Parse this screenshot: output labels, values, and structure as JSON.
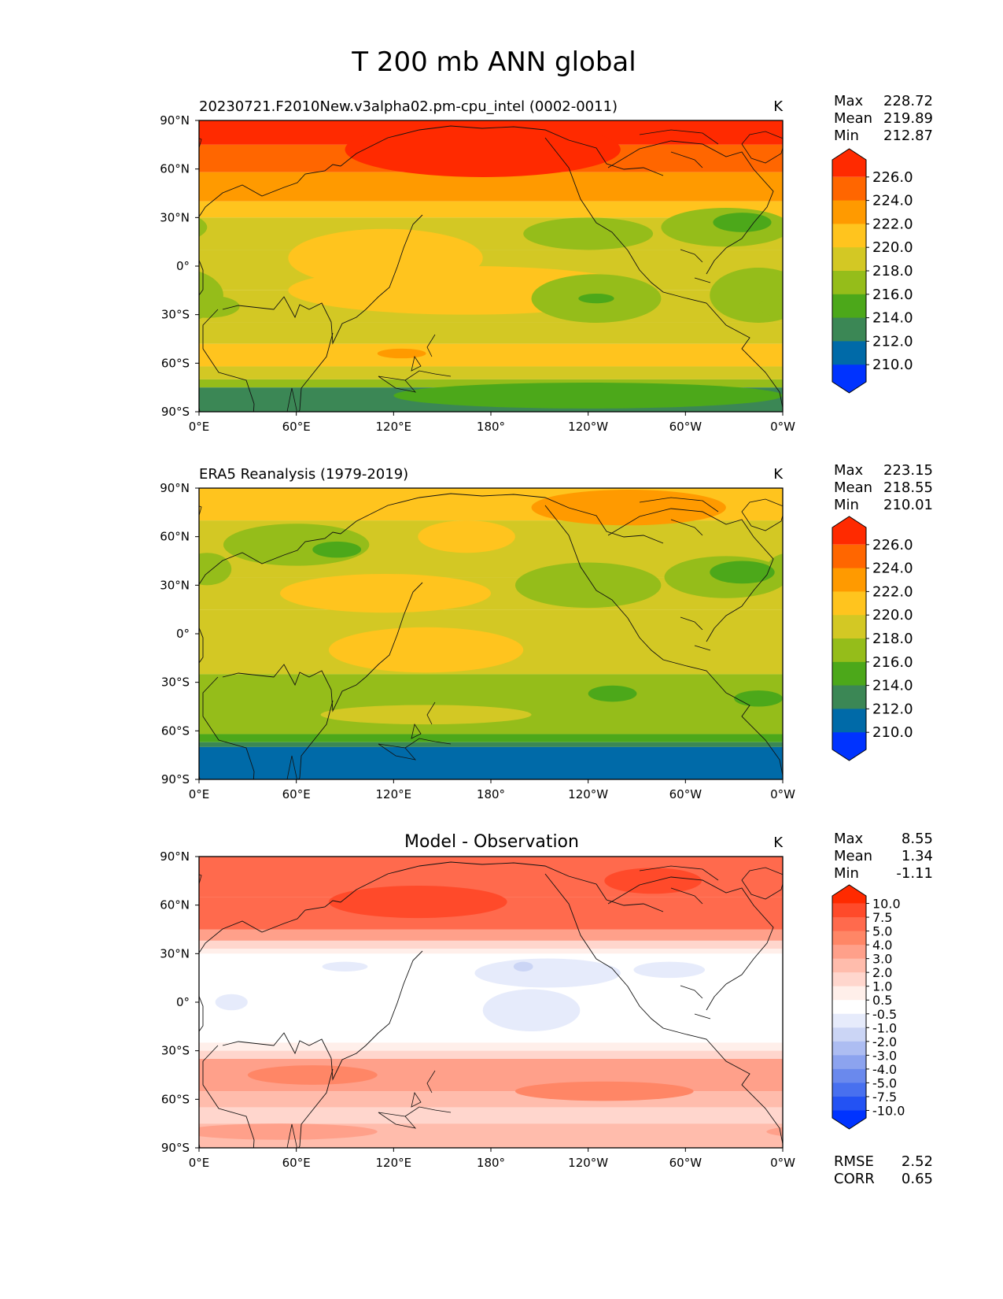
{
  "figure": {
    "title": "T 200 mb ANN global"
  },
  "chart_data": [
    {
      "type": "heatmap",
      "name": "model",
      "title": "20230721.F2010New.v3alpha02.pm-cpu_intel (0002-0011)",
      "units": "K",
      "stats": [
        {
          "label": "Max",
          "value": "228.72"
        },
        {
          "label": "Mean",
          "value": "219.89"
        },
        {
          "label": "Min",
          "value": "212.87"
        }
      ],
      "x_ticks": [
        "0°E",
        "60°E",
        "120°E",
        "180°",
        "120°W",
        "60°W",
        "0°W"
      ],
      "y_ticks": [
        "90°N",
        "60°N",
        "30°N",
        "0°",
        "30°S",
        "60°S",
        "90°S"
      ],
      "xlim": [
        0,
        360
      ],
      "ylim": [
        -90,
        90
      ],
      "colorbar": {
        "levels": [
          "226.0",
          "224.0",
          "222.0",
          "220.0",
          "218.0",
          "216.0",
          "214.0",
          "212.0",
          "210.0"
        ],
        "colors": [
          "#ff2a00",
          "#ff6600",
          "#ff9a00",
          "#ffc41e",
          "#d3c824",
          "#95bd1a",
          "#4ca81a",
          "#3b8755",
          "#006aa8",
          "#0033ff"
        ]
      },
      "zonal_bands": [
        {
          "lat_from": 90,
          "lat_to": 75,
          "level": 0
        },
        {
          "lat_from": 75,
          "lat_to": 58,
          "level": 1
        },
        {
          "lat_from": 58,
          "lat_to": 40,
          "level": 2
        },
        {
          "lat_from": 40,
          "lat_to": 30,
          "level": 3
        },
        {
          "lat_from": 30,
          "lat_to": 10,
          "level": 4
        },
        {
          "lat_from": 10,
          "lat_to": -15,
          "level": 4
        },
        {
          "lat_from": -15,
          "lat_to": -35,
          "level": 4
        },
        {
          "lat_from": -35,
          "lat_to": -48,
          "level": 4
        },
        {
          "lat_from": -48,
          "lat_to": -62,
          "level": 3
        },
        {
          "lat_from": -62,
          "lat_to": -70,
          "level": 4
        },
        {
          "lat_from": -70,
          "lat_to": -75,
          "level": 5
        },
        {
          "lat_from": -75,
          "lat_to": -90,
          "level": 7
        }
      ],
      "features": [
        {
          "lon": 175,
          "lat": 72,
          "rlon": 85,
          "rlat": 17,
          "level": 0
        },
        {
          "lon": 115,
          "lat": 5,
          "rlon": 60,
          "rlat": 18,
          "level": 3
        },
        {
          "lon": 165,
          "lat": -15,
          "rlon": 110,
          "rlat": 15,
          "level": 3
        },
        {
          "lon": 240,
          "lat": 20,
          "rlon": 40,
          "rlat": 10,
          "level": 5
        },
        {
          "lon": 325,
          "lat": 24,
          "rlon": 40,
          "rlat": 12,
          "level": 5
        },
        {
          "lon": 335,
          "lat": 27,
          "rlon": 18,
          "rlat": 6,
          "level": 6
        },
        {
          "lon": 245,
          "lat": -20,
          "rlon": 40,
          "rlat": 15,
          "level": 5
        },
        {
          "lon": 245,
          "lat": -20,
          "rlon": 11,
          "rlat": 3,
          "level": 6
        },
        {
          "lon": 345,
          "lat": -18,
          "rlon": 30,
          "rlat": 17,
          "level": 5
        },
        {
          "lon": 5,
          "lat": -25,
          "rlon": 20,
          "rlat": 7,
          "level": 5
        },
        {
          "lon": 125,
          "lat": -54,
          "rlon": 15,
          "rlat": 3,
          "level": 2
        },
        {
          "lon": 240,
          "lat": -80,
          "rlon": 120,
          "rlat": 8,
          "level": 6
        }
      ]
    },
    {
      "type": "heatmap",
      "name": "obs",
      "title": "ERA5 Reanalysis (1979-2019)",
      "units": "K",
      "stats": [
        {
          "label": "Max",
          "value": "223.15"
        },
        {
          "label": "Mean",
          "value": "218.55"
        },
        {
          "label": "Min",
          "value": "210.01"
        }
      ],
      "x_ticks": [
        "0°E",
        "60°E",
        "120°E",
        "180°",
        "120°W",
        "60°W",
        "0°W"
      ],
      "y_ticks": [
        "90°N",
        "60°N",
        "30°N",
        "0°",
        "30°S",
        "60°S",
        "90°S"
      ],
      "xlim": [
        0,
        360
      ],
      "ylim": [
        -90,
        90
      ],
      "colorbar": {
        "levels": [
          "226.0",
          "224.0",
          "222.0",
          "220.0",
          "218.0",
          "216.0",
          "214.0",
          "212.0",
          "210.0"
        ],
        "colors": [
          "#ff2a00",
          "#ff6600",
          "#ff9a00",
          "#ffc41e",
          "#d3c824",
          "#95bd1a",
          "#4ca81a",
          "#3b8755",
          "#006aa8",
          "#0033ff"
        ]
      },
      "zonal_bands": [
        {
          "lat_from": 90,
          "lat_to": 70,
          "level": 3
        },
        {
          "lat_from": 70,
          "lat_to": 35,
          "level": 4
        },
        {
          "lat_from": 35,
          "lat_to": 15,
          "level": 4
        },
        {
          "lat_from": 15,
          "lat_to": -25,
          "level": 4
        },
        {
          "lat_from": -25,
          "lat_to": -62,
          "level": 5
        },
        {
          "lat_from": -62,
          "lat_to": -67,
          "level": 6
        },
        {
          "lat_from": -67,
          "lat_to": -70,
          "level": 7
        },
        {
          "lat_from": -70,
          "lat_to": -90,
          "level": 8
        }
      ],
      "features": [
        {
          "lon": 265,
          "lat": 78,
          "rlon": 60,
          "rlat": 11,
          "level": 2
        },
        {
          "lon": 165,
          "lat": 60,
          "rlon": 30,
          "rlat": 10,
          "level": 3
        },
        {
          "lon": 115,
          "lat": 25,
          "rlon": 65,
          "rlat": 12,
          "level": 3
        },
        {
          "lon": 140,
          "lat": -10,
          "rlon": 60,
          "rlat": 14,
          "level": 3
        },
        {
          "lon": 60,
          "lat": 55,
          "rlon": 45,
          "rlat": 13,
          "level": 5
        },
        {
          "lon": 85,
          "lat": 52,
          "rlon": 15,
          "rlat": 5,
          "level": 6
        },
        {
          "lon": 5,
          "lat": 40,
          "rlon": 15,
          "rlat": 10,
          "level": 5
        },
        {
          "lon": 240,
          "lat": 30,
          "rlon": 45,
          "rlat": 14,
          "level": 5
        },
        {
          "lon": 325,
          "lat": 35,
          "rlon": 38,
          "rlat": 13,
          "level": 5
        },
        {
          "lon": 335,
          "lat": 38,
          "rlon": 20,
          "rlat": 7,
          "level": 6
        },
        {
          "lon": 140,
          "lat": -50,
          "rlon": 65,
          "rlat": 6,
          "level": 4
        },
        {
          "lon": 255,
          "lat": -37,
          "rlon": 15,
          "rlat": 5,
          "level": 6
        },
        {
          "lon": 345,
          "lat": -40,
          "rlon": 15,
          "rlat": 5,
          "level": 6
        }
      ]
    },
    {
      "type": "heatmap",
      "name": "diff",
      "title": "Model - Observation",
      "units": "K",
      "stats": [
        {
          "label": "Max",
          "value": "8.55"
        },
        {
          "label": "Mean",
          "value": "1.34"
        },
        {
          "label": "Min",
          "value": "-1.11"
        }
      ],
      "extra_stats": [
        {
          "label": "RMSE",
          "value": "2.52"
        },
        {
          "label": "CORR",
          "value": "0.65"
        }
      ],
      "x_ticks": [
        "0°E",
        "60°E",
        "120°E",
        "180°",
        "120°W",
        "60°W",
        "0°W"
      ],
      "y_ticks": [
        "90°N",
        "60°N",
        "30°N",
        "0°",
        "30°S",
        "60°S",
        "90°S"
      ],
      "xlim": [
        0,
        360
      ],
      "ylim": [
        -90,
        90
      ],
      "colorbar": {
        "levels": [
          "10.0",
          "7.5",
          "5.0",
          "4.0",
          "3.0",
          "2.0",
          "1.0",
          "0.5",
          "-0.5",
          "-1.0",
          "-2.0",
          "-3.0",
          "-4.0",
          "-5.0",
          "-7.5",
          "-10.0"
        ],
        "colors": [
          "#ff2a00",
          "#ff4a2a",
          "#ff6a4d",
          "#ff8666",
          "#ffa08a",
          "#ffbcac",
          "#ffd6cd",
          "#ffefea",
          "#ffffff",
          "#e6ebfb",
          "#cbd5f5",
          "#adbdf2",
          "#8ca3ef",
          "#6a89ed",
          "#4870ef",
          "#2352f3",
          "#0033ff"
        ]
      },
      "zonal_bands": [
        {
          "lat_from": 90,
          "lat_to": 65,
          "level": 2
        },
        {
          "lat_from": 65,
          "lat_to": 45,
          "level": 2
        },
        {
          "lat_from": 45,
          "lat_to": 38,
          "level": 4
        },
        {
          "lat_from": 38,
          "lat_to": 33,
          "level": 6
        },
        {
          "lat_from": 33,
          "lat_to": 30,
          "level": 7
        },
        {
          "lat_from": 30,
          "lat_to": -25,
          "level": 8
        },
        {
          "lat_from": -25,
          "lat_to": -30,
          "level": 7
        },
        {
          "lat_from": -30,
          "lat_to": -35,
          "level": 6
        },
        {
          "lat_from": -35,
          "lat_to": -55,
          "level": 4
        },
        {
          "lat_from": -55,
          "lat_to": -65,
          "level": 5
        },
        {
          "lat_from": -65,
          "lat_to": -75,
          "level": 6
        },
        {
          "lat_from": -75,
          "lat_to": -90,
          "level": 5
        }
      ],
      "features": [
        {
          "lon": 135,
          "lat": 62,
          "rlon": 55,
          "rlat": 10,
          "level": 1
        },
        {
          "lon": 280,
          "lat": 75,
          "rlon": 30,
          "rlat": 8,
          "level": 1
        },
        {
          "lon": 90,
          "lat": 22,
          "rlon": 14,
          "rlat": 3,
          "level": 9
        },
        {
          "lon": 215,
          "lat": 18,
          "rlon": 45,
          "rlat": 9,
          "level": 9
        },
        {
          "lon": 290,
          "lat": 20,
          "rlon": 22,
          "rlat": 5,
          "level": 9
        },
        {
          "lon": 205,
          "lat": -5,
          "rlon": 30,
          "rlat": 13,
          "level": 9
        },
        {
          "lon": 20,
          "lat": 0,
          "rlon": 10,
          "rlat": 5,
          "level": 9
        },
        {
          "lon": 200,
          "lat": 22,
          "rlon": 6,
          "rlat": 3,
          "level": 10
        },
        {
          "lon": 70,
          "lat": -45,
          "rlon": 40,
          "rlat": 6,
          "level": 3
        },
        {
          "lon": 250,
          "lat": -55,
          "rlon": 55,
          "rlat": 6,
          "level": 3
        },
        {
          "lon": 50,
          "lat": -80,
          "rlon": 60,
          "rlat": 5,
          "level": 4
        }
      ]
    }
  ]
}
